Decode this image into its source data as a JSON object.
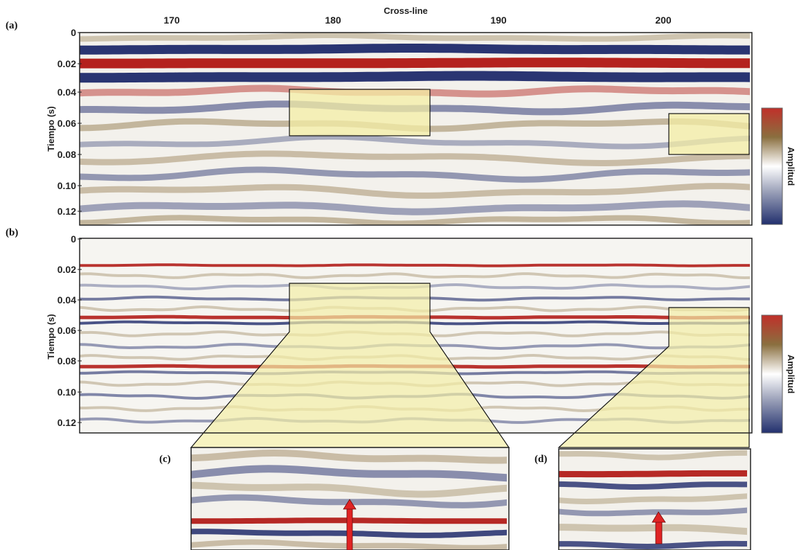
{
  "panel_labels": {
    "a": "(a)",
    "b": "(b)",
    "c": "(c)",
    "d": "(d)"
  },
  "xaxis": {
    "title": "Cross-line",
    "ticks": [
      "170",
      "180",
      "190",
      "200"
    ]
  },
  "yaxis": {
    "title": "Tiempo (s)",
    "ticks": [
      "0",
      "0.02",
      "0.04",
      "0.06",
      "0.08",
      "0.10",
      "0.12"
    ]
  },
  "colorbar": {
    "label": "Amplitud",
    "colors": [
      "#c0302a",
      "#8a6f3f",
      "#ffffff",
      "#9aa0b8",
      "#22306e"
    ]
  },
  "colors": {
    "red": "#b21e1a",
    "blue": "#1f2a6b",
    "brown": "#8a6f3f",
    "highlight": "#f4eea6",
    "arrow": "#e02424"
  }
}
